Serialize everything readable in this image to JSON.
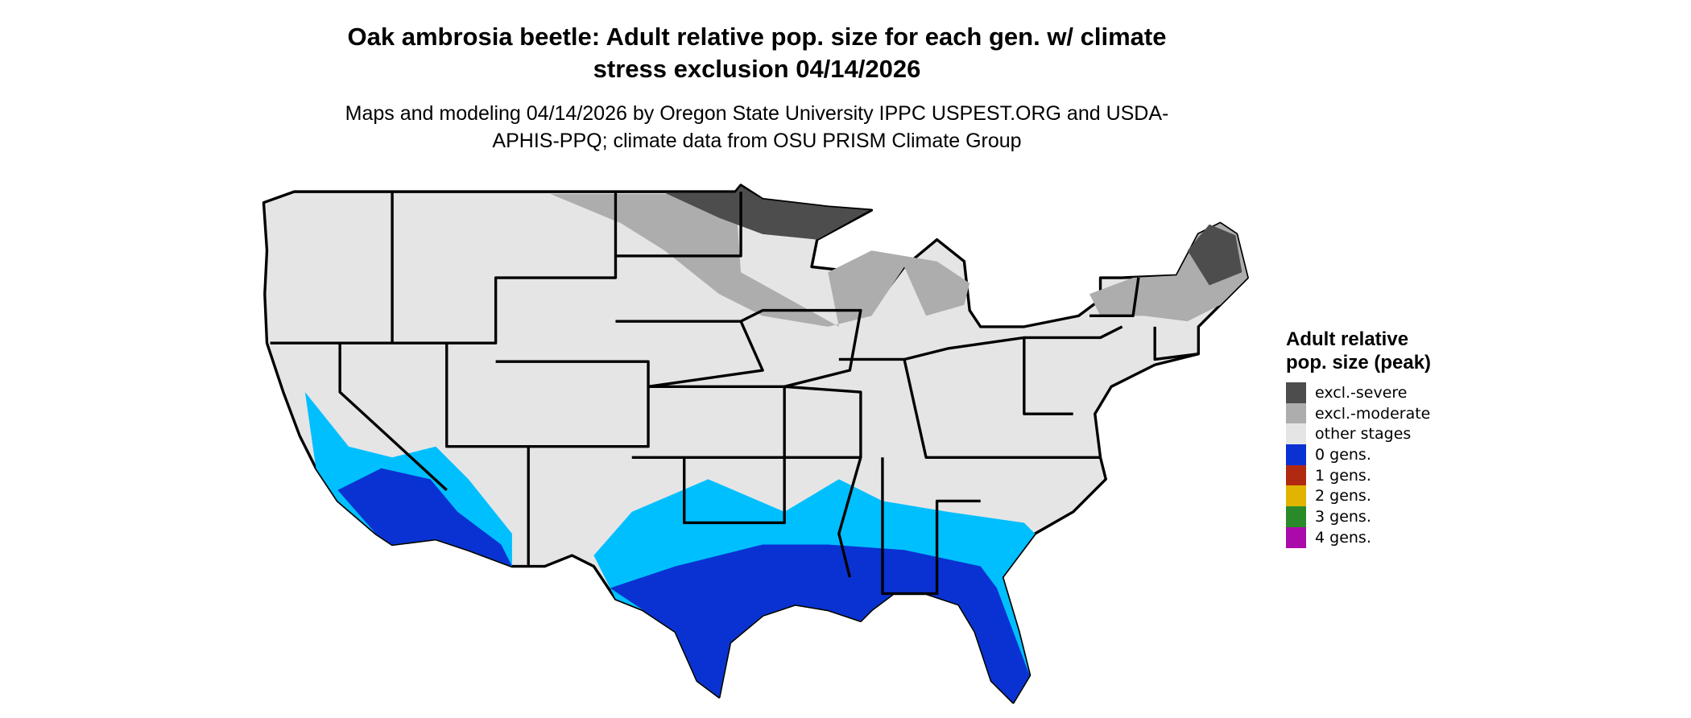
{
  "title": "Oak ambrosia beetle: Adult relative pop. size for each gen. w/ climate stress exclusion 04/14/2026",
  "subtitle": "Maps and modeling 04/14/2026 by Oregon State University IPPC USPEST.ORG and USDA-APHIS-PPQ; climate data from OSU PRISM Climate Group",
  "legend": {
    "title": "Adult relative pop. size (peak)",
    "items": [
      {
        "label": "excl.-severe",
        "color": "#4d4d4d"
      },
      {
        "label": "excl.-moderate",
        "color": "#adadad"
      },
      {
        "label": "other stages",
        "color": "#e5e5e5"
      },
      {
        "label": "0 gens.",
        "color": "#0a32d2"
      },
      {
        "label": "1 gens.",
        "color": "#b02a12"
      },
      {
        "label": "2 gens.",
        "color": "#e0b400"
      },
      {
        "label": "3 gens.",
        "color": "#2a8a2a"
      },
      {
        "label": "4 gens.",
        "color": "#aa0aaa"
      }
    ]
  }
}
